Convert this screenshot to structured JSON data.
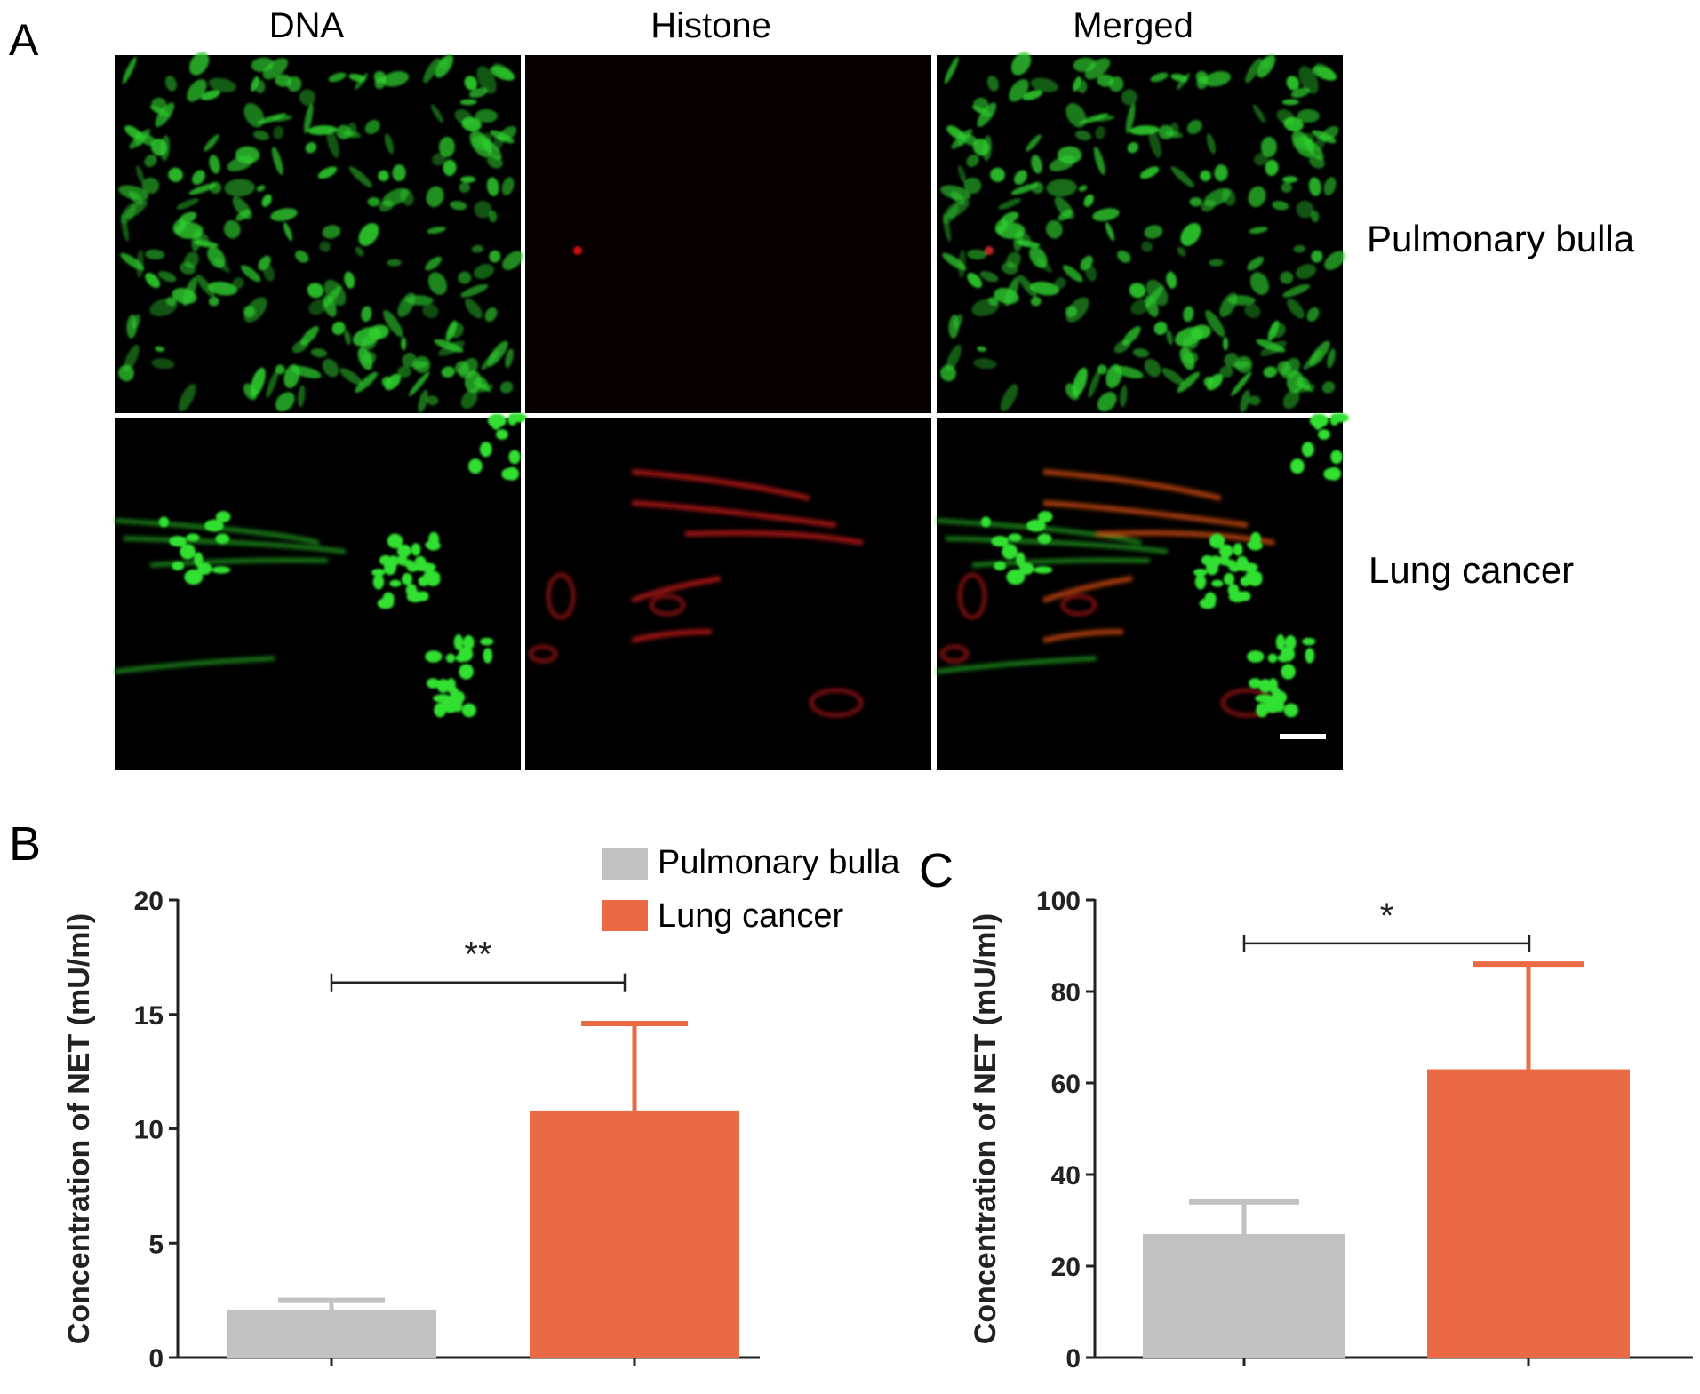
{
  "panel_a": {
    "label": "A",
    "column_labels": [
      "DNA",
      "Histone",
      "Merged"
    ],
    "row_labels": [
      "Pulmonary bulla",
      "Lung cancer"
    ]
  },
  "legend": {
    "items": [
      {
        "label": "Pulmonary bulla",
        "color": "#c2c2c2"
      },
      {
        "label": "Lung cancer",
        "color": "#e96a44"
      }
    ]
  },
  "chart_data": [
    {
      "panel_label": "B",
      "type": "bar",
      "categories": [
        "Pulmonary bulla",
        "Lung cancer"
      ],
      "values": [
        2.1,
        10.8
      ],
      "errors": [
        0.4,
        3.8
      ],
      "colors": [
        "#c2c2c2",
        "#e96a44"
      ],
      "ylabel": "Concentration of NET (mU/ml)",
      "ylim": [
        0,
        20
      ],
      "yticks": [
        0,
        5,
        10,
        15,
        20
      ],
      "significance": {
        "between": [
          0,
          1
        ],
        "label": "**",
        "level": 16.4
      }
    },
    {
      "panel_label": "C",
      "type": "bar",
      "categories": [
        "Pulmonary bulla",
        "Lung cancer"
      ],
      "values": [
        27,
        63
      ],
      "errors": [
        7,
        23
      ],
      "colors": [
        "#c2c2c2",
        "#e96a44"
      ],
      "ylabel": "Concentration of NET (mU/ml)",
      "ylim": [
        0,
        100
      ],
      "yticks": [
        0,
        20,
        40,
        60,
        80,
        100
      ],
      "significance": {
        "between": [
          0,
          1
        ],
        "label": "*",
        "level": 90.5
      }
    }
  ]
}
